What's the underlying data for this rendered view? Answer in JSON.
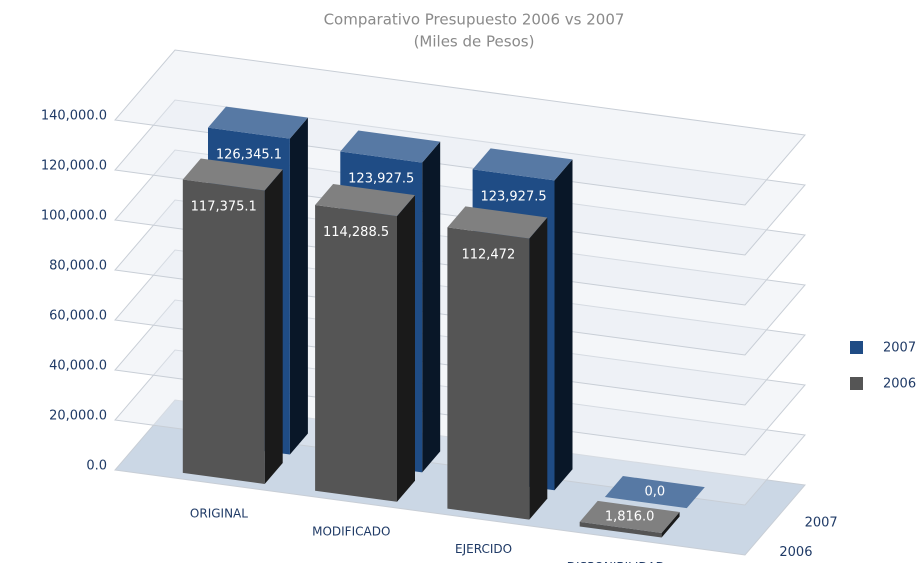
{
  "chart_data": {
    "type": "bar3d",
    "title": "Comparativo Presupuesto 2006 vs 2007",
    "subtitle": "(Miles de Pesos)",
    "categories": [
      "ORIGINAL",
      "MODIFICADO",
      "EJERCIDO",
      "DISPONIBILIDAD"
    ],
    "series": [
      {
        "name": "2007",
        "color": "#1f4c85",
        "values": [
          126345.1,
          123927.5,
          123927.5,
          0
        ],
        "value_labels": [
          "126,345.1",
          "123,927.5",
          "123,927.5",
          "0,0"
        ]
      },
      {
        "name": "2006",
        "color": "#555555",
        "values": [
          117375.1,
          114288.5,
          112472,
          1816
        ],
        "value_labels": [
          "117,375.1",
          "114,288.5",
          "112,472",
          "1,816.0"
        ]
      }
    ],
    "ylim": [
      0,
      140000
    ],
    "yticks": [
      {
        "value": 0,
        "label": "0.0"
      },
      {
        "value": 20000,
        "label": "20,000.0"
      },
      {
        "value": 40000,
        "label": "40,000.0"
      },
      {
        "value": 60000,
        "label": "60,000.0"
      },
      {
        "value": 80000,
        "label": "80,000.0"
      },
      {
        "value": 100000,
        "label": "100,000.0"
      },
      {
        "value": 120000,
        "label": "120,000.0"
      },
      {
        "value": 140000,
        "label": "140,000.0"
      }
    ],
    "legend": "right"
  }
}
